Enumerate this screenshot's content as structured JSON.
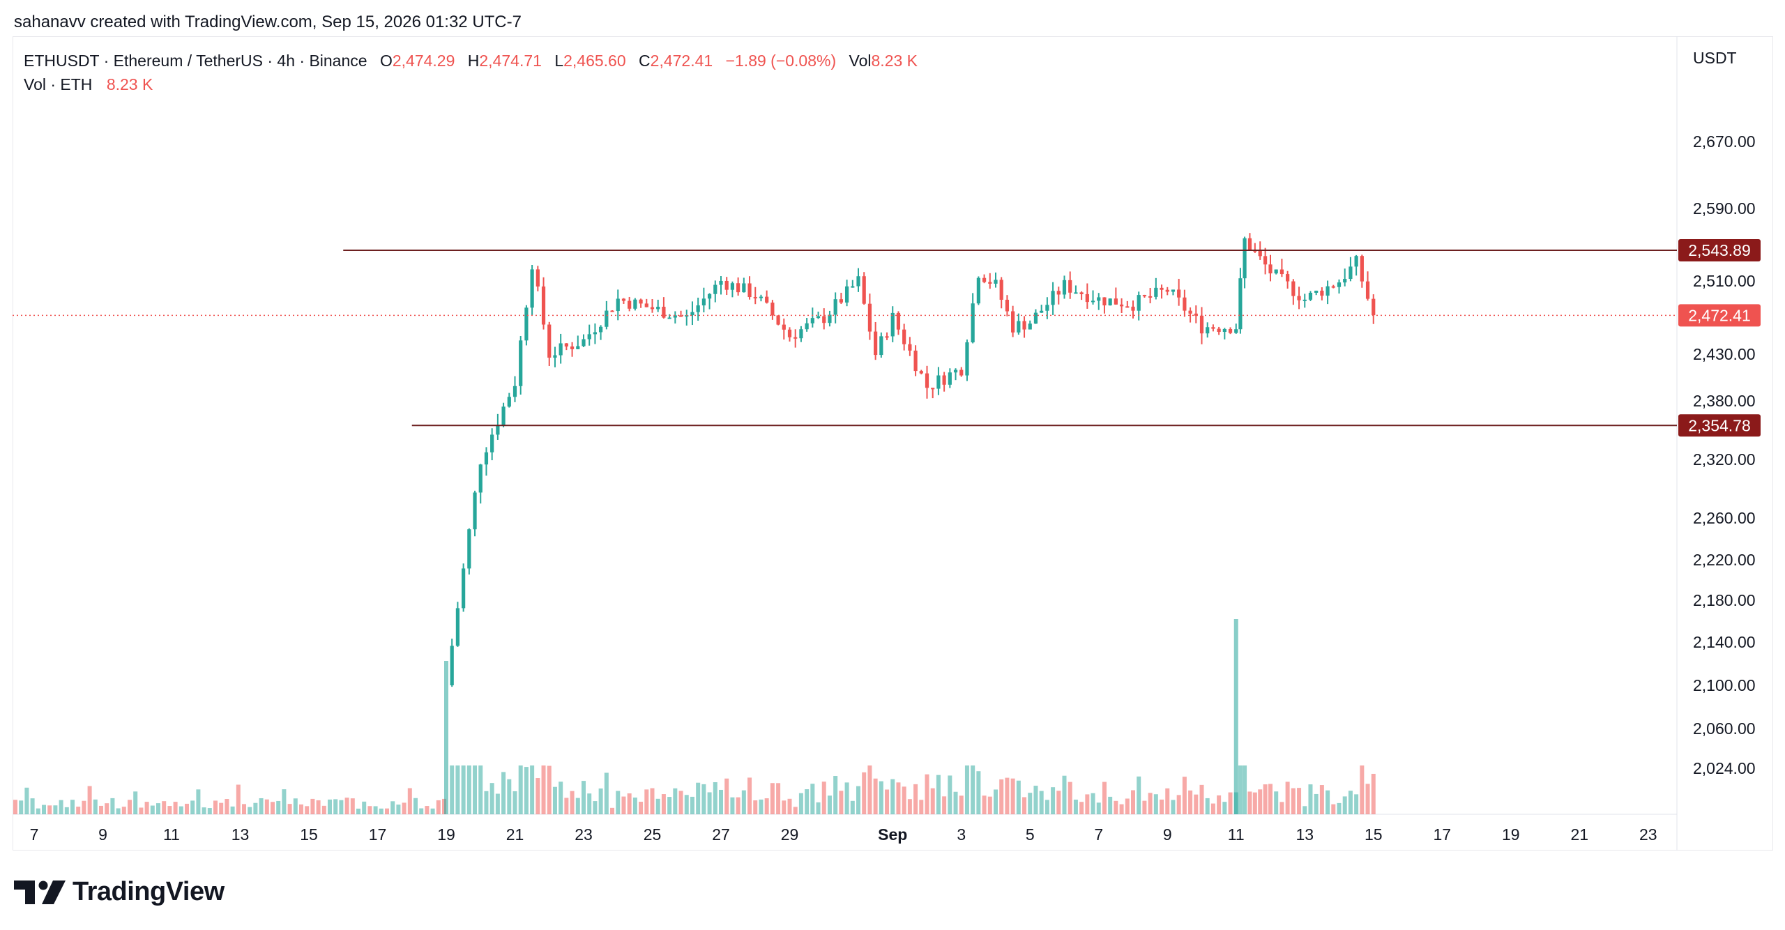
{
  "caption": "sahanavv created with TradingView.com, Sep 15, 2026 01:32 UTC-7",
  "brand": {
    "name": "TradingView",
    "logo_icon": "tradingview-logo-icon"
  },
  "legend": {
    "symbol": "ETHUSDT · Ethereum / TetherUS · 4h · Binance",
    "open_label": "O",
    "open": "2,474.29",
    "high_label": "H",
    "high": "2,474.71",
    "low_label": "L",
    "low": "2,465.60",
    "close_label": "C",
    "close": "2,472.41",
    "change": "−1.89 (−0.08%)",
    "vol_label": "Vol",
    "vol": "8.23 K",
    "vol_series_label": "Vol · ETH",
    "vol_series_value": "8.23 K"
  },
  "colors": {
    "up": "#26a69a",
    "down": "#ef5350",
    "level_line": "#6d2020",
    "level_badge": "#8b1a1a",
    "last_badge": "#ef5350"
  },
  "chart_data": {
    "type": "candlestick",
    "unit": "USDT",
    "y_ticks": [
      "2,670.00",
      "2,590.00",
      "2,510.00",
      "2,430.00",
      "2,380.00",
      "2,320.00",
      "2,260.00",
      "2,220.00",
      "2,180.00",
      "2,140.00",
      "2,100.00",
      "2,060.00",
      "2,024.00"
    ],
    "x_ticks": [
      "7",
      "9",
      "11",
      "13",
      "15",
      "17",
      "19",
      "21",
      "23",
      "25",
      "27",
      "29",
      "Sep",
      "3",
      "5",
      "7",
      "9",
      "11",
      "13",
      "15",
      "17",
      "19",
      "21",
      "23"
    ],
    "horizontal_levels": [
      {
        "value": 2543.89,
        "label": "2,543.89",
        "from_date": "Aug 16"
      },
      {
        "value": 2354.78,
        "label": "2,354.78",
        "from_date": "Aug 18"
      }
    ],
    "last_price": {
      "value": 2472.41,
      "label": "2,472.41"
    },
    "candle_anchors": [
      {
        "date": "Aug 19",
        "close": 2100
      },
      {
        "date": "Aug 20",
        "close": 2320
      },
      {
        "date": "Aug 21",
        "close": 2400
      },
      {
        "date": "Aug 21 12:00",
        "close": 2530
      },
      {
        "date": "Aug 22",
        "close": 2430
      },
      {
        "date": "Aug 23",
        "close": 2445
      },
      {
        "date": "Aug 24",
        "close": 2490
      },
      {
        "date": "Aug 25",
        "close": 2480
      },
      {
        "date": "Aug 26",
        "close": 2470
      },
      {
        "date": "Aug 27",
        "close": 2510
      },
      {
        "date": "Aug 28",
        "close": 2495
      },
      {
        "date": "Aug 29",
        "close": 2450
      },
      {
        "date": "Aug 30",
        "close": 2470
      },
      {
        "date": "Aug 31",
        "close": 2510
      },
      {
        "date": "Aug 31 12:00",
        "close": 2430
      },
      {
        "date": "Sep 1",
        "close": 2470
      },
      {
        "date": "Sep 2",
        "close": 2395
      },
      {
        "date": "Sep 3",
        "close": 2415
      },
      {
        "date": "Sep 3 12:00",
        "close": 2520
      },
      {
        "date": "Sep 4",
        "close": 2505
      },
      {
        "date": "Sep 4 12:00",
        "close": 2460
      },
      {
        "date": "Sep 5",
        "close": 2465
      },
      {
        "date": "Sep 6",
        "close": 2505
      },
      {
        "date": "Sep 7",
        "close": 2490
      },
      {
        "date": "Sep 8",
        "close": 2485
      },
      {
        "date": "Sep 9",
        "close": 2500
      },
      {
        "date": "Sep 10",
        "close": 2460
      },
      {
        "date": "Sep 11",
        "close": 2460
      },
      {
        "date": "Sep 11 06:00",
        "close": 2555
      },
      {
        "date": "Sep 12",
        "close": 2520
      },
      {
        "date": "Sep 13",
        "close": 2490
      },
      {
        "date": "Sep 14",
        "close": 2510
      },
      {
        "date": "Sep 14 12:00",
        "close": 2530
      },
      {
        "date": "Sep 15",
        "close": 2472.41
      }
    ],
    "volume_highlights": [
      {
        "date": "Aug 19",
        "volume": "peak"
      },
      {
        "date": "Sep 11",
        "volume": "max"
      }
    ]
  }
}
